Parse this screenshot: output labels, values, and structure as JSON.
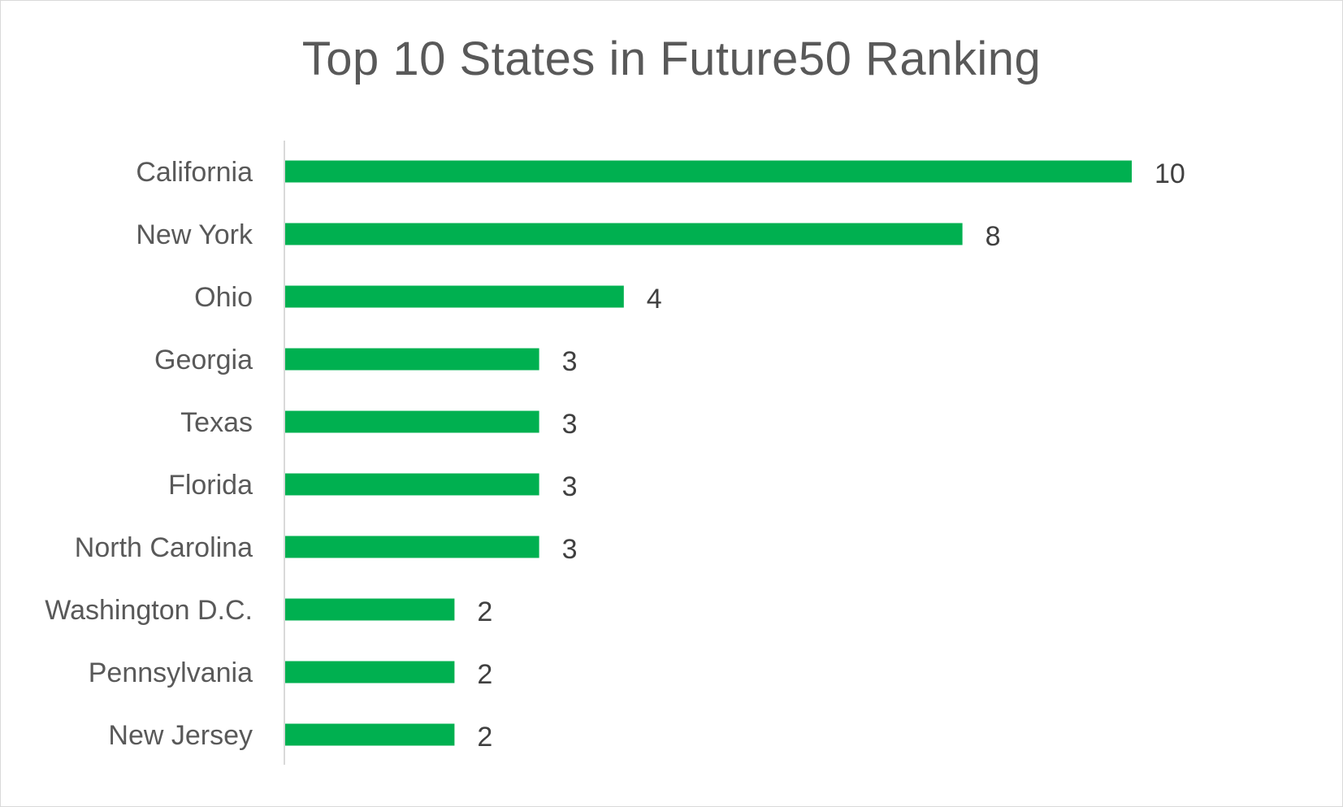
{
  "chart_data": {
    "type": "bar",
    "orientation": "horizontal",
    "title": "Top 10 States in Future50 Ranking",
    "categories": [
      "California",
      "New York",
      "Ohio",
      "Georgia",
      "Texas",
      "Florida",
      "North Carolina",
      "Washington D.C.",
      "Pennsylvania",
      "New Jersey"
    ],
    "values": [
      10,
      8,
      4,
      3,
      3,
      3,
      3,
      2,
      2,
      2
    ],
    "xlim": [
      0,
      10
    ],
    "grid": false,
    "legend": "none",
    "data_labels": true
  },
  "colors": {
    "bar": "#00b050",
    "axis": "#d9d9d9",
    "text": "#595959",
    "value_text": "#404040"
  }
}
